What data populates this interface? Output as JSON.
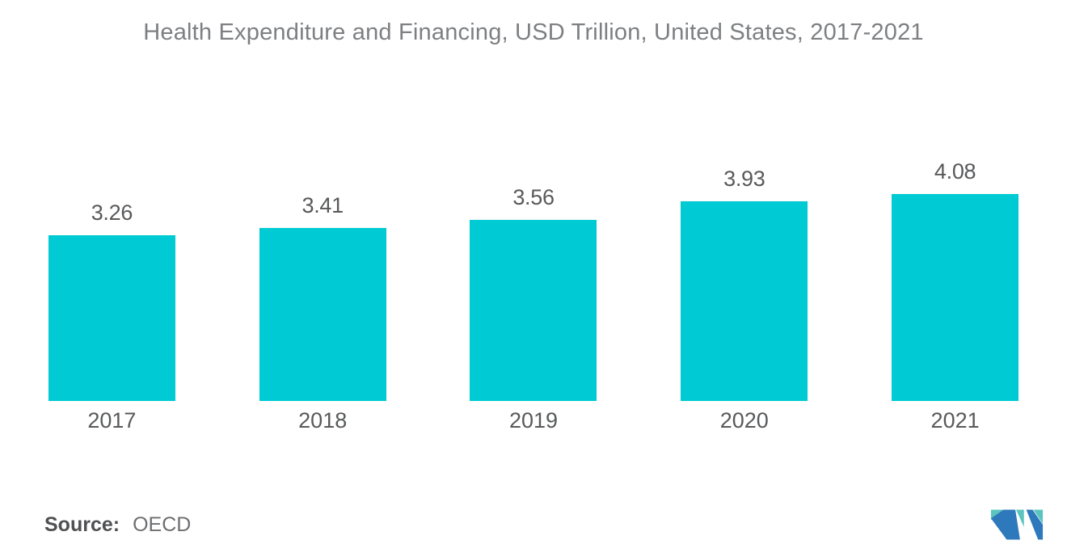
{
  "chart_data": {
    "type": "bar",
    "title": "Health Expenditure and Financing, USD Trillion, United States, 2017-2021",
    "categories": [
      "2017",
      "2018",
      "2019",
      "2020",
      "2021"
    ],
    "values": [
      3.26,
      3.41,
      3.56,
      3.93,
      4.08
    ],
    "value_labels": [
      "3.26",
      "3.41",
      "3.56",
      "3.93",
      "4.08"
    ],
    "xlabel": "",
    "ylabel": "",
    "ylim": [
      0,
      6.4
    ],
    "grid": false,
    "legend": false,
    "bar_color": "#00cad3",
    "label_color": "#58595b",
    "title_color": "#7d7f82"
  },
  "footer": {
    "source_label": "Source:",
    "source_value": "OECD",
    "logo_name": "mordor-intelligence-logo",
    "logo_colors": {
      "teal": "#5bc4be",
      "blue": "#2e79bc"
    }
  }
}
